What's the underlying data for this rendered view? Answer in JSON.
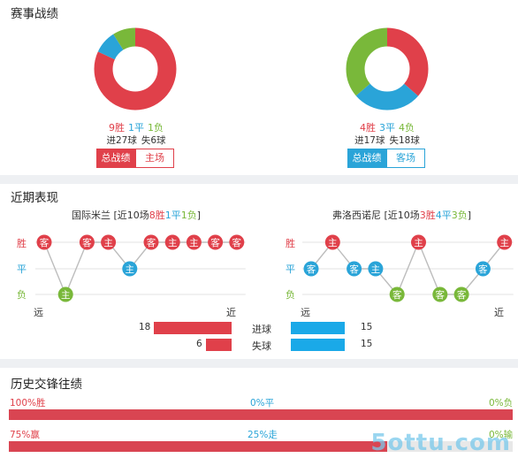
{
  "record": {
    "title": "赛事战绩",
    "left": {
      "wins": "9胜",
      "draws": "1平",
      "losses": "1负",
      "goals_for": "进27球",
      "goals_against": "失6球",
      "tab_active": "总战绩",
      "tab_other": "主场",
      "donut": [
        {
          "value": 9,
          "color": "#e0404a"
        },
        {
          "value": 1,
          "color": "#2aa4d8"
        },
        {
          "value": 1,
          "color": "#79b83a"
        }
      ]
    },
    "right": {
      "wins": "4胜",
      "draws": "3平",
      "losses": "4负",
      "goals_for": "进17球",
      "goals_against": "失18球",
      "tab_active": "总战绩",
      "tab_other": "客场",
      "donut": [
        {
          "value": 4,
          "color": "#e0404a"
        },
        {
          "value": 3,
          "color": "#2aa4d8"
        },
        {
          "value": 4,
          "color": "#79b83a"
        }
      ]
    }
  },
  "recent": {
    "title": "近期表现",
    "y_labels": {
      "win": "胜",
      "draw": "平",
      "loss": "负"
    },
    "x_labels": {
      "far": "远",
      "near": "近"
    },
    "left": {
      "team": "国际米兰",
      "summary_pre": " [近10场",
      "wins": "8胜",
      "draws": "1平",
      "losses": "1负",
      "summary_post": "]",
      "matches": [
        {
          "venue": "客",
          "result": "W"
        },
        {
          "venue": "主",
          "result": "L"
        },
        {
          "venue": "客",
          "result": "W"
        },
        {
          "venue": "主",
          "result": "W"
        },
        {
          "venue": "主",
          "result": "D"
        },
        {
          "venue": "客",
          "result": "W"
        },
        {
          "venue": "主",
          "result": "W"
        },
        {
          "venue": "主",
          "result": "W"
        },
        {
          "venue": "客",
          "result": "W"
        },
        {
          "venue": "客",
          "result": "W"
        }
      ],
      "goals_for": 18,
      "goals_against": 6
    },
    "right": {
      "team": "弗洛西诺尼",
      "summary_pre": " [近10场",
      "wins": "3胜",
      "draws": "4平",
      "losses": "3负",
      "summary_post": "]",
      "matches": [
        {
          "venue": "客",
          "result": "D"
        },
        {
          "venue": "主",
          "result": "W"
        },
        {
          "venue": "客",
          "result": "D"
        },
        {
          "venue": "主",
          "result": "D"
        },
        {
          "venue": "客",
          "result": "L"
        },
        {
          "venue": "主",
          "result": "W"
        },
        {
          "venue": "客",
          "result": "L"
        },
        {
          "venue": "客",
          "result": "L"
        },
        {
          "venue": "客",
          "result": "D"
        },
        {
          "venue": "主",
          "result": "W"
        }
      ],
      "goals_for": 15,
      "goals_against": 15
    },
    "goals_label": "进球",
    "conceded_label": "失球",
    "left_bar_color": "#e0404a",
    "right_bar_color": "#1aa9e8"
  },
  "history": {
    "title": "历史交锋往绩",
    "row1": {
      "left": "100%胜",
      "mid": "0%平",
      "right": "0%负",
      "fill": 1.0
    },
    "row2": {
      "left": "75%赢",
      "mid": "25%走",
      "right": "0%输",
      "fill": 0.75
    },
    "bar_color": "#d94552",
    "track_color": "#e8e8e8"
  },
  "watermark": "5ottu.com"
}
